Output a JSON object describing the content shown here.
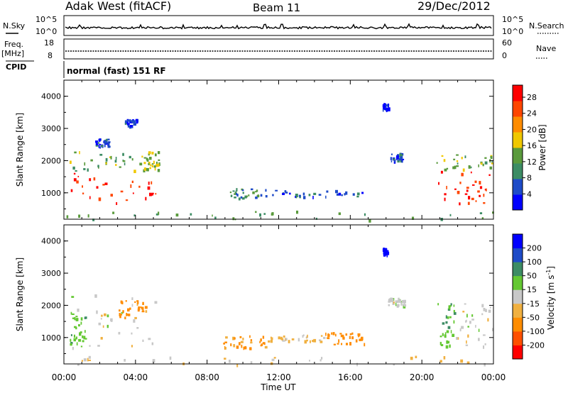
{
  "header": {
    "station": "Adak West (fitACF)",
    "beam": "Beam 11",
    "date": "29/Dec/2012"
  },
  "status_panels": {
    "nsky_label": "N.Sky",
    "nsky_ticks": [
      "10^5",
      "10^0"
    ],
    "nsearch_label": "N.Search",
    "nsearch_ticks": [
      "10^5",
      "10^0"
    ],
    "freq_label": "Freq.",
    "freq_unit": "[MHz]",
    "freq_ticks": [
      "18",
      "8"
    ],
    "nave_label": "Nave",
    "nave_ticks": [
      "60",
      "0"
    ],
    "cpid_label": "CPID",
    "cpid_text": "normal (fast) 151 RF"
  },
  "colors": {
    "power_scale": [
      "#0000ff",
      "#1e4bc8",
      "#3c8c64",
      "#5a9a3c",
      "#f0c800",
      "#ff8c00",
      "#ff4600",
      "#ff0000"
    ],
    "velocity_scale": [
      "#ff0000",
      "#ff5000",
      "#ff8c00",
      "#f0b040",
      "#c8c8c8",
      "#64c832",
      "#3c8c64",
      "#1e4bc8",
      "#0000ff"
    ]
  },
  "chart_data": [
    {
      "type": "heatmap",
      "name": "power",
      "ylabel": "Slant Range [km]",
      "yticks": [
        "1000",
        "2000",
        "3000",
        "4000"
      ],
      "ylim": [
        180,
        4500
      ],
      "xlim": [
        0,
        24
      ],
      "colorbar_label": "Power [dB]",
      "colorbar_ticks": [
        "4",
        "8",
        "12",
        "16",
        "20",
        "24",
        "28"
      ],
      "colorbar_range": [
        0,
        31
      ],
      "regions": [
        {
          "t0": 0.3,
          "t1": 5.2,
          "r0": 650,
          "r1": 1700,
          "level": 28
        },
        {
          "t0": 0.3,
          "t1": 5.2,
          "r0": 1700,
          "r1": 2300,
          "level": 14
        },
        {
          "t0": 4.3,
          "t1": 5.3,
          "r0": 1700,
          "r1": 2300,
          "level": 16
        },
        {
          "t0": 1.7,
          "t1": 2.5,
          "r0": 2400,
          "r1": 2700,
          "level": 5
        },
        {
          "t0": 3.4,
          "t1": 4.1,
          "r0": 3100,
          "r1": 3300,
          "level": 6
        },
        {
          "t0": 8.7,
          "t1": 11.3,
          "r0": 850,
          "r1": 1150,
          "level": 10
        },
        {
          "t0": 11.3,
          "t1": 16.7,
          "r0": 900,
          "r1": 1100,
          "level": 6
        },
        {
          "t0": 18.1,
          "t1": 18.9,
          "r0": 2000,
          "r1": 2250,
          "level": 6
        },
        {
          "t0": 17.8,
          "t1": 18.1,
          "r0": 3600,
          "r1": 3800,
          "level": 4
        },
        {
          "t0": 20.8,
          "t1": 24.0,
          "r0": 700,
          "r1": 1700,
          "level": 28
        },
        {
          "t0": 20.8,
          "t1": 24.0,
          "r0": 1700,
          "r1": 2200,
          "level": 14
        },
        {
          "t0": 0.0,
          "t1": 24.0,
          "r0": 180,
          "r1": 450,
          "level": 12
        }
      ]
    },
    {
      "type": "heatmap",
      "name": "velocity",
      "ylabel": "Slant Range [km]",
      "yticks": [
        "1000",
        "2000",
        "3000",
        "4000"
      ],
      "ylim": [
        180,
        4500
      ],
      "xlim": [
        0,
        24
      ],
      "xticks": [
        "00:00",
        "04:00",
        "08:00",
        "12:00",
        "16:00",
        "20:00",
        "00:00"
      ],
      "xlabel": "Time UT",
      "colorbar_label": "Velocity [m s",
      "colorbar_label_sup": "-1",
      "colorbar_label_end": "]",
      "colorbar_ticks": [
        "-200",
        "-100",
        "-50",
        "-15",
        "15",
        "50",
        "100",
        "200"
      ],
      "regions": [
        {
          "t0": 0.3,
          "t1": 5.2,
          "r0": 700,
          "r1": 2400,
          "velocity": 0
        },
        {
          "t0": 0.3,
          "t1": 1.2,
          "r0": 700,
          "r1": 1800,
          "velocity": 40
        },
        {
          "t0": 3.0,
          "t1": 4.6,
          "r0": 1600,
          "r1": 2200,
          "velocity": -60
        },
        {
          "t0": 8.7,
          "t1": 11.3,
          "r0": 700,
          "r1": 1100,
          "velocity": -60
        },
        {
          "t0": 11.3,
          "t1": 14.5,
          "r0": 900,
          "r1": 1100,
          "velocity": -20
        },
        {
          "t0": 14.5,
          "t1": 16.8,
          "r0": 800,
          "r1": 1200,
          "velocity": -70
        },
        {
          "t0": 18.1,
          "t1": 19.0,
          "r0": 2000,
          "r1": 2250,
          "velocity": 0
        },
        {
          "t0": 17.8,
          "t1": 18.1,
          "r0": 3600,
          "r1": 3800,
          "velocity": 220
        },
        {
          "t0": 20.8,
          "t1": 21.8,
          "r0": 700,
          "r1": 2100,
          "velocity": 40
        },
        {
          "t0": 21.8,
          "t1": 24.0,
          "r0": 700,
          "r1": 2100,
          "velocity": 0
        },
        {
          "t0": 0.0,
          "t1": 24.0,
          "r0": 180,
          "r1": 450,
          "velocity": -20
        }
      ]
    }
  ]
}
